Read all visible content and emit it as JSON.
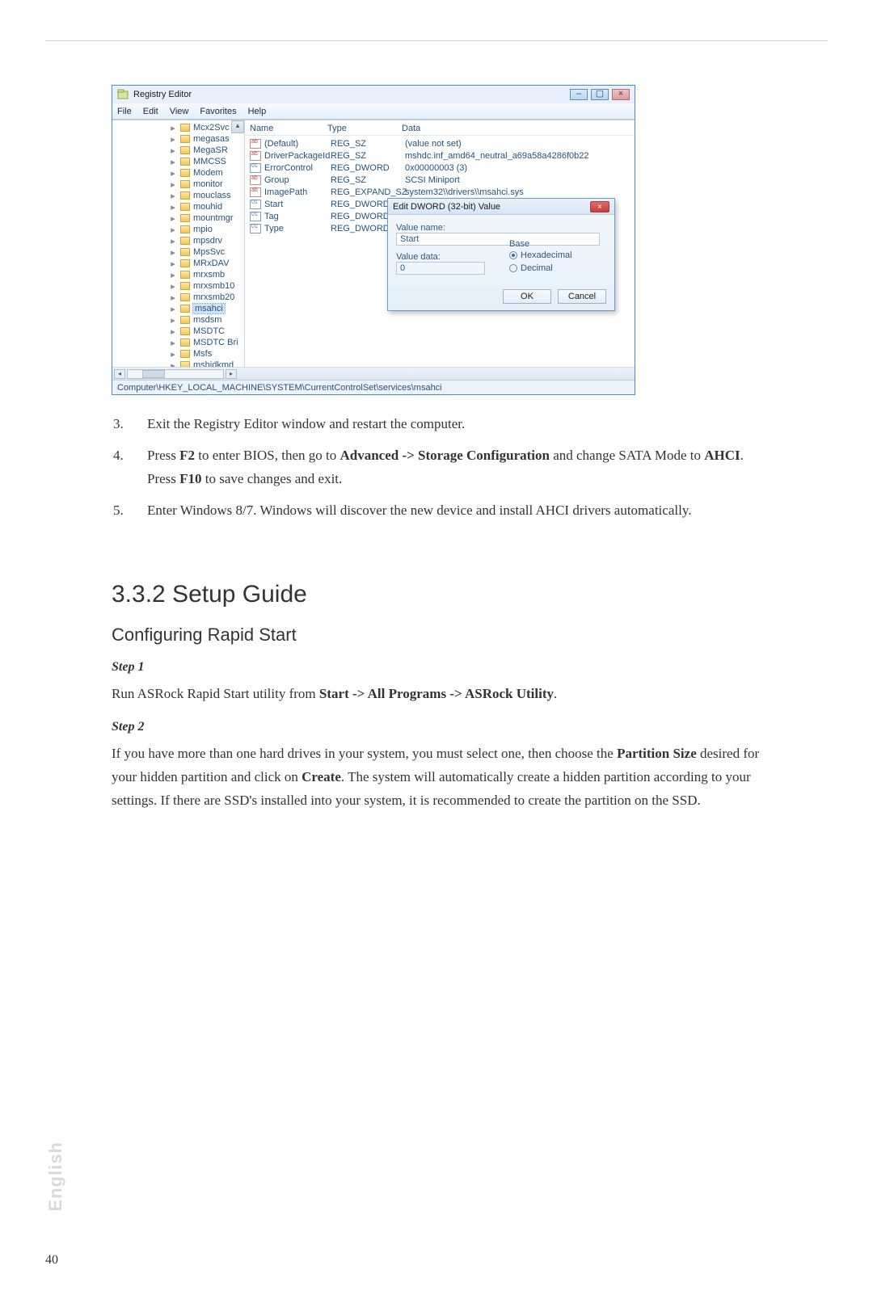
{
  "regedit": {
    "title": "Registry Editor",
    "menus": [
      "File",
      "Edit",
      "View",
      "Favorites",
      "Help"
    ],
    "win_btns": {
      "min": "–",
      "max": "▢",
      "close": "×"
    },
    "tree": [
      {
        "label": "Mcx2Svc",
        "sel": false
      },
      {
        "label": "megasas",
        "sel": false
      },
      {
        "label": "MegaSR",
        "sel": false
      },
      {
        "label": "MMCSS",
        "sel": false
      },
      {
        "label": "Modem",
        "sel": false
      },
      {
        "label": "monitor",
        "sel": false
      },
      {
        "label": "mouclass",
        "sel": false
      },
      {
        "label": "mouhid",
        "sel": false
      },
      {
        "label": "mountmgr",
        "sel": false
      },
      {
        "label": "mpio",
        "sel": false
      },
      {
        "label": "mpsdrv",
        "sel": false
      },
      {
        "label": "MpsSvc",
        "sel": false
      },
      {
        "label": "MRxDAV",
        "sel": false
      },
      {
        "label": "mrxsmb",
        "sel": false
      },
      {
        "label": "mrxsmb10",
        "sel": false
      },
      {
        "label": "mrxsmb20",
        "sel": false
      },
      {
        "label": "msahci",
        "sel": true
      },
      {
        "label": "msdsm",
        "sel": false
      },
      {
        "label": "MSDTC",
        "sel": false
      },
      {
        "label": "MSDTC Bri",
        "sel": false
      },
      {
        "label": "Msfs",
        "sel": false
      },
      {
        "label": "mshidkmd",
        "sel": false
      }
    ],
    "columns": {
      "name": "Name",
      "type": "Type",
      "data": "Data"
    },
    "values": [
      {
        "ico": "sz",
        "name": "(Default)",
        "type": "REG_SZ",
        "data": "(value not set)"
      },
      {
        "ico": "sz",
        "name": "DriverPackageId",
        "type": "REG_SZ",
        "data": "mshdc.inf_amd64_neutral_a69a58a4286f0b22"
      },
      {
        "ico": "dw",
        "name": "ErrorControl",
        "type": "REG_DWORD",
        "data": "0x00000003 (3)"
      },
      {
        "ico": "sz",
        "name": "Group",
        "type": "REG_SZ",
        "data": "SCSI Miniport"
      },
      {
        "ico": "sz",
        "name": "ImagePath",
        "type": "REG_EXPAND_SZ",
        "data": "system32\\\\drivers\\\\msahci.sys"
      },
      {
        "ico": "dw",
        "name": "Start",
        "type": "REG_DWORD",
        "data": ""
      },
      {
        "ico": "dw",
        "name": "Tag",
        "type": "REG_DWORD",
        "data": ""
      },
      {
        "ico": "dw",
        "name": "Type",
        "type": "REG_DWORD",
        "data": ""
      }
    ],
    "dialog": {
      "title": "Edit DWORD (32-bit) Value",
      "vname_label": "Value name:",
      "vname": "Start",
      "vdata_label": "Value data:",
      "vdata": "0",
      "base_label": "Base",
      "hex": "Hexadecimal",
      "dec": "Decimal",
      "ok": "OK",
      "cancel": "Cancel"
    },
    "status": "Computer\\HKEY_LOCAL_MACHINE\\SYSTEM\\CurrentControlSet\\services\\msahci"
  },
  "steps": {
    "s3_num": "3.",
    "s3": "Exit the Registry Editor window and restart the computer.",
    "s4_num": "4.",
    "s4_a": "Press ",
    "s4_b": "F2",
    "s4_c": " to enter BIOS, then go to ",
    "s4_d": "Advanced -> Storage Configuration",
    "s4_e": " and change SATA Mode to ",
    "s4_f": "AHCI",
    "s4_g": ". Press ",
    "s4_h": "F10",
    "s4_i": " to save changes and exit.",
    "s5_num": "5.",
    "s5": "Enter Windows 8/7. Windows will discover the new device and install AHCI drivers automatically."
  },
  "headings": {
    "h2": "3.3.2  Setup Guide",
    "h3": "Configuring Rapid Start",
    "step1": "Step 1",
    "step2": "Step 2"
  },
  "paras": {
    "p1_a": "Run ASRock Rapid Start utility from ",
    "p1_b": "Start -> All Programs -> ASRock Utility",
    "p1_c": ".",
    "p2_a": "If you have more than one hard drives in your system, you must select one, then choose the ",
    "p2_b": "Partition Size",
    "p2_c": " desired for your hidden partition and click on ",
    "p2_d": "Create",
    "p2_e": ". The system will automatically create a hidden partition according to your settings. If there are SSD's installed into your system, it is recommended to create the partition on the SSD."
  },
  "side_lang": "English",
  "page_num": "40"
}
